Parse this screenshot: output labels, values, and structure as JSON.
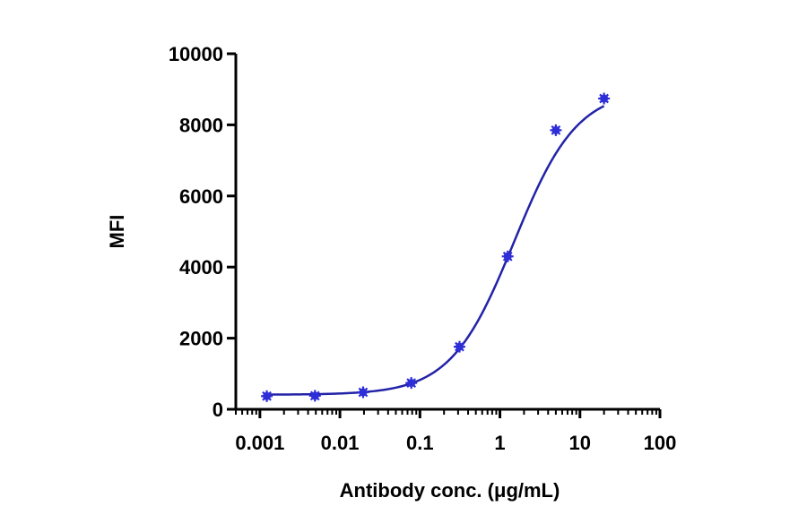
{
  "chart_data": {
    "type": "scatter",
    "xlabel": "Antibody conc. (μg/mL)",
    "ylabel": "MFI",
    "xscale": "log",
    "xlim": [
      0.0005,
      100
    ],
    "ylim": [
      0,
      10000
    ],
    "x_ticks": [
      "0.001",
      "0.01",
      "0.1",
      "1",
      "10",
      "100"
    ],
    "y_ticks": [
      "0",
      "2000",
      "4000",
      "6000",
      "8000",
      "10000"
    ],
    "series": [
      {
        "x": [
          0.00122,
          0.00488,
          0.0195,
          0.078,
          0.3125,
          1.25,
          5,
          20
        ],
        "y": [
          370,
          380,
          480,
          740,
          1760,
          4300,
          7850,
          8740
        ],
        "fit": "four-parameter logistic",
        "color": "#2323a8",
        "marker_color": "#2f2fd8"
      }
    ],
    "grid": false,
    "legend": "none"
  }
}
